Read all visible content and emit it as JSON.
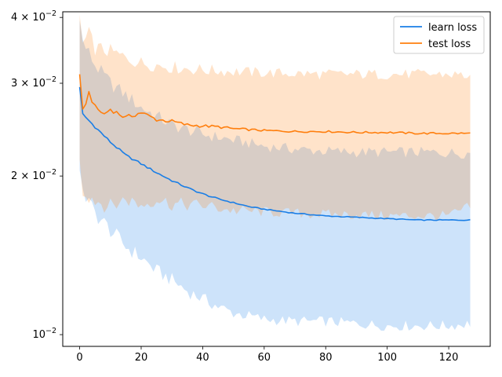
{
  "chart_data": {
    "type": "line",
    "title": "",
    "xlabel": "",
    "ylabel": "",
    "xscale": "linear",
    "yscale": "log",
    "xlim": [
      -5.5,
      133.5
    ],
    "ylim": [
      0.0095,
      0.041
    ],
    "grid": false,
    "legend": "top-right",
    "x_ticks": [
      {
        "value": 0,
        "label": "0"
      },
      {
        "value": 20,
        "label": "20"
      },
      {
        "value": 40,
        "label": "40"
      },
      {
        "value": 60,
        "label": "60"
      },
      {
        "value": 80,
        "label": "80"
      },
      {
        "value": 100,
        "label": "100"
      },
      {
        "value": 120,
        "label": "120"
      }
    ],
    "y_ticks": [
      {
        "value": 0.01,
        "base": "10",
        "exp": "−2",
        "coef": ""
      },
      {
        "value": 0.02,
        "base": "10",
        "exp": "−2",
        "coef": "2 × "
      },
      {
        "value": 0.03,
        "base": "10",
        "exp": "−2",
        "coef": "3 × "
      },
      {
        "value": 0.04,
        "base": "10",
        "exp": "−2",
        "coef": "4 × "
      }
    ],
    "series": [
      {
        "name": "learn loss",
        "color": "#1a7ee6",
        "band_color": "#aad4fa",
        "x_max": 127,
        "mean_pts": [
          [
            0,
            0.0295
          ],
          [
            1,
            0.0262
          ],
          [
            5,
            0.0248
          ],
          [
            10,
            0.0232
          ],
          [
            15,
            0.0219
          ],
          [
            20,
            0.0211
          ],
          [
            25,
            0.0203
          ],
          [
            30,
            0.0196
          ],
          [
            35,
            0.019
          ],
          [
            40,
            0.0185
          ],
          [
            45,
            0.0181
          ],
          [
            50,
            0.0178
          ],
          [
            55,
            0.0175
          ],
          [
            60,
            0.0173
          ],
          [
            70,
            0.017
          ],
          [
            80,
            0.0168
          ],
          [
            90,
            0.0167
          ],
          [
            100,
            0.0166
          ],
          [
            110,
            0.0165
          ],
          [
            127,
            0.0165
          ]
        ],
        "lower_pts": [
          [
            0,
            0.0205
          ],
          [
            2,
            0.0182
          ],
          [
            5,
            0.017
          ],
          [
            10,
            0.0158
          ],
          [
            15,
            0.0147
          ],
          [
            20,
            0.014
          ],
          [
            25,
            0.0132
          ],
          [
            30,
            0.0127
          ],
          [
            35,
            0.0121
          ],
          [
            40,
            0.0117
          ],
          [
            45,
            0.0113
          ],
          [
            50,
            0.011
          ],
          [
            60,
            0.0107
          ],
          [
            70,
            0.0106
          ],
          [
            80,
            0.0106
          ],
          [
            90,
            0.0105
          ],
          [
            100,
            0.0104
          ],
          [
            110,
            0.0104
          ],
          [
            120,
            0.0104
          ],
          [
            127,
            0.0105
          ]
        ],
        "upper_pts": [
          [
            0,
            0.0395
          ],
          [
            1,
            0.036
          ],
          [
            5,
            0.0325
          ],
          [
            10,
            0.03
          ],
          [
            15,
            0.0285
          ],
          [
            20,
            0.027
          ],
          [
            25,
            0.026
          ],
          [
            30,
            0.025
          ],
          [
            35,
            0.0245
          ],
          [
            40,
            0.024
          ],
          [
            50,
            0.0234
          ],
          [
            60,
            0.0228
          ],
          [
            70,
            0.0225
          ],
          [
            80,
            0.0223
          ],
          [
            90,
            0.0222
          ],
          [
            100,
            0.0222
          ],
          [
            110,
            0.0222
          ],
          [
            127,
            0.0221
          ]
        ]
      },
      {
        "name": "test loss",
        "color": "#ff7f0e",
        "band_color": "#ffd7b5",
        "x_max": 127,
        "mean_pts": [
          [
            0,
            0.0312
          ],
          [
            1,
            0.0265
          ],
          [
            3,
            0.0288
          ],
          [
            5,
            0.027
          ],
          [
            8,
            0.0262
          ],
          [
            10,
            0.0268
          ],
          [
            15,
            0.0258
          ],
          [
            20,
            0.0264
          ],
          [
            25,
            0.0256
          ],
          [
            30,
            0.0254
          ],
          [
            35,
            0.025
          ],
          [
            40,
            0.0249
          ],
          [
            45,
            0.0248
          ],
          [
            50,
            0.0246
          ],
          [
            60,
            0.0244
          ],
          [
            70,
            0.0243
          ],
          [
            80,
            0.0243
          ],
          [
            90,
            0.0242
          ],
          [
            100,
            0.0242
          ],
          [
            110,
            0.0241
          ],
          [
            120,
            0.0241
          ],
          [
            127,
            0.0241
          ]
        ],
        "lower_pts": [
          [
            0,
            0.0215
          ],
          [
            1,
            0.0188
          ],
          [
            5,
            0.018
          ],
          [
            10,
            0.0175
          ],
          [
            15,
            0.0181
          ],
          [
            20,
            0.0176
          ],
          [
            25,
            0.0181
          ],
          [
            30,
            0.0177
          ],
          [
            40,
            0.0176
          ],
          [
            50,
            0.0172
          ],
          [
            60,
            0.0171
          ],
          [
            70,
            0.017
          ],
          [
            80,
            0.0169
          ],
          [
            90,
            0.0169
          ],
          [
            100,
            0.0168
          ],
          [
            110,
            0.0168
          ],
          [
            120,
            0.0168
          ],
          [
            127,
            0.0175
          ]
        ],
        "upper_pts": [
          [
            0,
            0.0405
          ],
          [
            1,
            0.0355
          ],
          [
            3,
            0.0372
          ],
          [
            5,
            0.035
          ],
          [
            10,
            0.0345
          ],
          [
            15,
            0.0335
          ],
          [
            20,
            0.0328
          ],
          [
            30,
            0.0322
          ],
          [
            40,
            0.0318
          ],
          [
            50,
            0.0316
          ],
          [
            60,
            0.0314
          ],
          [
            70,
            0.0313
          ],
          [
            80,
            0.0312
          ],
          [
            90,
            0.0312
          ],
          [
            100,
            0.0312
          ],
          [
            110,
            0.0312
          ],
          [
            120,
            0.0312
          ],
          [
            127,
            0.031
          ]
        ]
      }
    ]
  }
}
